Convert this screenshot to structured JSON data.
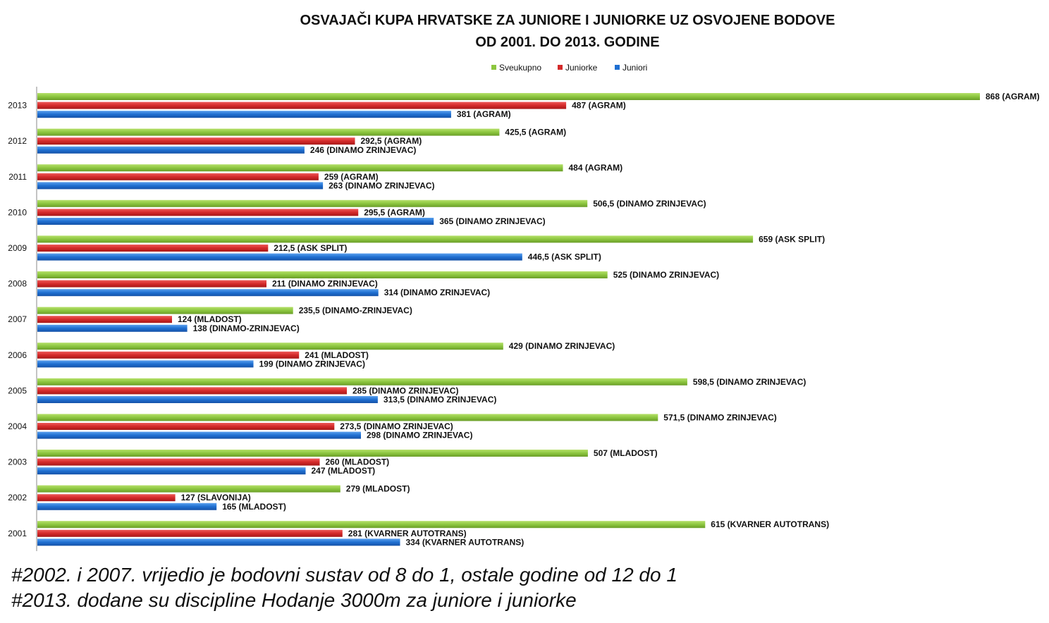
{
  "chart_data": {
    "type": "bar",
    "orientation": "horizontal",
    "title": "OSVAJAČI KUPA HRVATSKE ZA JUNIORE I JUNIORKE UZ OSVOJENE BODOVE",
    "subtitle": "OD 2001. DO 2013. GODINE",
    "legend_position": "top",
    "grid": false,
    "xlim": [
      0,
      868
    ],
    "categories": [
      "2013",
      "2012",
      "2011",
      "2010",
      "2009",
      "2008",
      "2007",
      "2006",
      "2005",
      "2004",
      "2003",
      "2002",
      "2001"
    ],
    "series": [
      {
        "name": "Sveukupno",
        "color": "#8cc63f",
        "values": [
          868,
          425.5,
          484,
          506.5,
          659,
          525,
          235.5,
          429,
          598.5,
          571.5,
          507,
          279,
          615
        ],
        "labels": [
          "868 (AGRAM)",
          "425,5 (AGRAM)",
          "484 (AGRAM)",
          "506,5 (DINAMO ZRINJEVAC)",
          "659 (ASK SPLIT)",
          "525 (DINAMO ZRINJEVAC)",
          "235,5 (DINAMO-ZRINJEVAC)",
          "429 (DINAMO ZRINJEVAC)",
          "598,5 (DINAMO ZRINJEVAC)",
          "571,5 (DINAMO ZRINJEVAC)",
          "507 (MLADOST)",
          "279 (MLADOST)",
          "615 (KVARNER AUTOTRANS)"
        ]
      },
      {
        "name": "Juniorke",
        "color": "#d42a2a",
        "values": [
          487,
          292.5,
          259,
          295.5,
          212.5,
          211,
          124,
          241,
          285,
          273.5,
          260,
          127,
          281
        ],
        "labels": [
          "487 (AGRAM)",
          "292,5 (AGRAM)",
          "259 (AGRAM)",
          "295,5 (AGRAM)",
          "212,5 (ASK SPLIT)",
          "211 (DINAMO ZRINJEVAC)",
          "124 (MLADOST)",
          "241 (MLADOST)",
          "285 (DINAMO ZRINJEVAC)",
          "273,5 (DINAMO ZRINJEVAC)",
          "260 (MLADOST)",
          "127 (SLAVONIJA)",
          "281 (KVARNER AUTOTRANS)"
        ]
      },
      {
        "name": "Juniori",
        "color": "#1f6fd1",
        "values": [
          381,
          246,
          263,
          365,
          446.5,
          314,
          138,
          199,
          313.5,
          298,
          247,
          165,
          334
        ],
        "labels": [
          "381 (AGRAM)",
          "246 (DINAMO ZRINJEVAC)",
          "263 (DINAMO ZRINJEVAC)",
          "365 (DINAMO ZRINJEVAC)",
          "446,5 (ASK SPLIT)",
          "314 (DINAMO ZRINJEVAC)",
          "138 (DINAMO-ZRINJEVAC)",
          "199 (DINAMO ZRINJEVAC)",
          "313,5 (DINAMO ZRINJEVAC)",
          "298 (DINAMO ZRINJEVAC)",
          "247 (MLADOST)",
          "165 (MLADOST)",
          "334 (KVARNER AUTOTRANS)"
        ]
      }
    ]
  },
  "notes": [
    "#2002. i 2007. vrijedio je bodovni sustav od 8 do 1, ostale godine od 12 do 1",
    "#2013. dodane su discipline Hodanje 3000m za juniore i juniorke"
  ]
}
